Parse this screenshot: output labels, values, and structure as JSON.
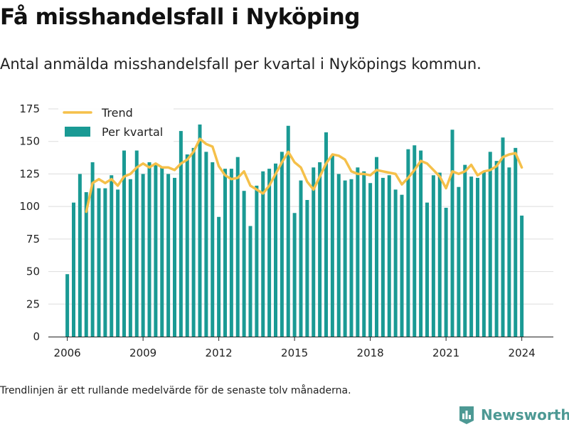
{
  "title": "Få misshandelsfall i Nyköping",
  "subtitle": "Antal anmälda misshandelsfall per kvartal i Nyköpings kommun.",
  "footnote": "Trendlinjen är ett rullande medelvärde för de senaste tolv månaderna.",
  "brand": {
    "name": "Newsworthy",
    "icon": "newsworthy-logo-icon",
    "color": "#4d9994"
  },
  "colors": {
    "bars": "#1a9a94",
    "trend": "#f5c04a",
    "grid": "#dddddd",
    "axis": "#222222"
  },
  "chart_data": {
    "type": "bar",
    "title": "Få misshandelsfall i Nyköping",
    "subtitle": "Antal anmälda misshandelsfall per kvartal i Nyköpings kommun.",
    "xlabel": "",
    "ylabel": "",
    "ylim": [
      0,
      175
    ],
    "xlim": [
      2005.25,
      2025.25
    ],
    "yticks": [
      0,
      25,
      50,
      75,
      100,
      125,
      150,
      175
    ],
    "xticks": [
      2006,
      2009,
      2012,
      2015,
      2018,
      2021,
      2024
    ],
    "grid": true,
    "legend_position": "top-left",
    "series": [
      {
        "name": "Per kvartal",
        "type": "bar",
        "color": "#1a9a94",
        "x": [
          2006.0,
          2006.25,
          2006.5,
          2006.75,
          2007.0,
          2007.25,
          2007.5,
          2007.75,
          2008.0,
          2008.25,
          2008.5,
          2008.75,
          2009.0,
          2009.25,
          2009.5,
          2009.75,
          2010.0,
          2010.25,
          2010.5,
          2010.75,
          2011.0,
          2011.25,
          2011.5,
          2011.75,
          2012.0,
          2012.25,
          2012.5,
          2012.75,
          2013.0,
          2013.25,
          2013.5,
          2013.75,
          2014.0,
          2014.25,
          2014.5,
          2014.75,
          2015.0,
          2015.25,
          2015.5,
          2015.75,
          2016.0,
          2016.25,
          2016.5,
          2016.75,
          2017.0,
          2017.25,
          2017.5,
          2017.75,
          2018.0,
          2018.25,
          2018.5,
          2018.75,
          2019.0,
          2019.25,
          2019.5,
          2019.75,
          2020.0,
          2020.25,
          2020.5,
          2020.75,
          2021.0,
          2021.25,
          2021.5,
          2021.75,
          2022.0,
          2022.25,
          2022.5,
          2022.75,
          2023.0,
          2023.25,
          2023.5,
          2023.75,
          2024.0
        ],
        "values": [
          48,
          103,
          125,
          111,
          134,
          114,
          114,
          124,
          113,
          143,
          121,
          143,
          125,
          134,
          132,
          130,
          125,
          122,
          158,
          140,
          145,
          163,
          142,
          134,
          92,
          129,
          129,
          138,
          112,
          85,
          116,
          127,
          129,
          133,
          142,
          162,
          95,
          120,
          105,
          130,
          134,
          157,
          139,
          125,
          120,
          121,
          130,
          127,
          118,
          138,
          122,
          124,
          113,
          109,
          144,
          147,
          143,
          103,
          124,
          126,
          99,
          159,
          115,
          132,
          123,
          122,
          127,
          142,
          135,
          153,
          130,
          145,
          93
        ]
      },
      {
        "name": "Trend",
        "type": "line",
        "color": "#f5c04a",
        "x": [
          2006.75,
          2007.0,
          2007.25,
          2007.5,
          2007.75,
          2008.0,
          2008.25,
          2008.5,
          2008.75,
          2009.0,
          2009.25,
          2009.5,
          2009.75,
          2010.0,
          2010.25,
          2010.5,
          2010.75,
          2011.0,
          2011.25,
          2011.5,
          2011.75,
          2012.0,
          2012.25,
          2012.5,
          2012.75,
          2013.0,
          2013.25,
          2013.5,
          2013.75,
          2014.0,
          2014.25,
          2014.5,
          2014.75,
          2015.0,
          2015.25,
          2015.5,
          2015.75,
          2016.0,
          2016.25,
          2016.5,
          2016.75,
          2017.0,
          2017.25,
          2017.5,
          2017.75,
          2018.0,
          2018.25,
          2018.5,
          2018.75,
          2019.0,
          2019.25,
          2019.5,
          2019.75,
          2020.0,
          2020.25,
          2020.5,
          2020.75,
          2021.0,
          2021.25,
          2021.5,
          2021.75,
          2022.0,
          2022.25,
          2022.5,
          2022.75,
          2023.0,
          2023.25,
          2023.5,
          2023.75,
          2024.0
        ],
        "values": [
          96,
          118,
          121,
          118,
          121,
          116,
          123,
          125,
          130,
          133,
          130,
          133,
          130,
          130,
          128,
          133,
          136,
          142,
          152,
          148,
          146,
          131,
          124,
          121,
          122,
          127,
          116,
          113,
          110,
          116,
          125,
          134,
          142,
          134,
          130,
          119,
          113,
          123,
          133,
          140,
          139,
          136,
          127,
          125,
          125,
          124,
          128,
          127,
          126,
          125,
          117,
          122,
          128,
          135,
          133,
          128,
          123,
          114,
          127,
          125,
          127,
          132,
          124,
          127,
          128,
          131,
          138,
          140,
          141,
          130
        ]
      }
    ]
  }
}
